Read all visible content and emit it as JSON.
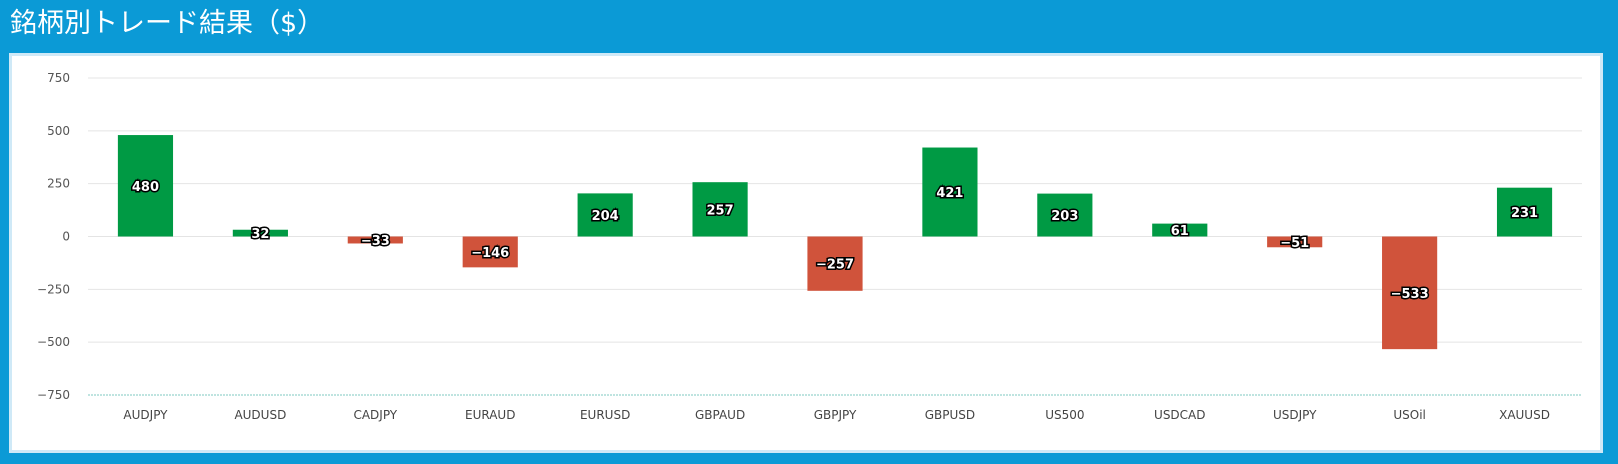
{
  "header": {
    "title": "銘柄別トレード結果（$）"
  },
  "chart_data": {
    "type": "bar",
    "title": "銘柄別トレード結果（$）",
    "xlabel": "",
    "ylabel": "",
    "ylim": [
      -750,
      750
    ],
    "yticks": [
      750,
      500,
      250,
      0,
      -250,
      -500,
      -750
    ],
    "ytick_labels": [
      "750",
      "500",
      "250",
      "0",
      "−250",
      "−500",
      "−750"
    ],
    "grid": true,
    "legend": "none",
    "categories": [
      "AUDJPY",
      "AUDUSD",
      "CADJPY",
      "EURAUD",
      "EURUSD",
      "GBPAUD",
      "GBPJPY",
      "GBPUSD",
      "US500",
      "USDCAD",
      "USDJPY",
      "USOil",
      "XAUUSD"
    ],
    "values": [
      480,
      32,
      -33,
      -146,
      204,
      257,
      -257,
      421,
      203,
      61,
      -51,
      -533,
      231
    ],
    "value_labels": [
      "480",
      "32",
      "−33",
      "−146",
      "204",
      "257",
      "−257",
      "421",
      "203",
      "61",
      "−51",
      "−533",
      "231"
    ],
    "colors": {
      "positive": "#009a44",
      "negative": "#d0533b"
    }
  }
}
